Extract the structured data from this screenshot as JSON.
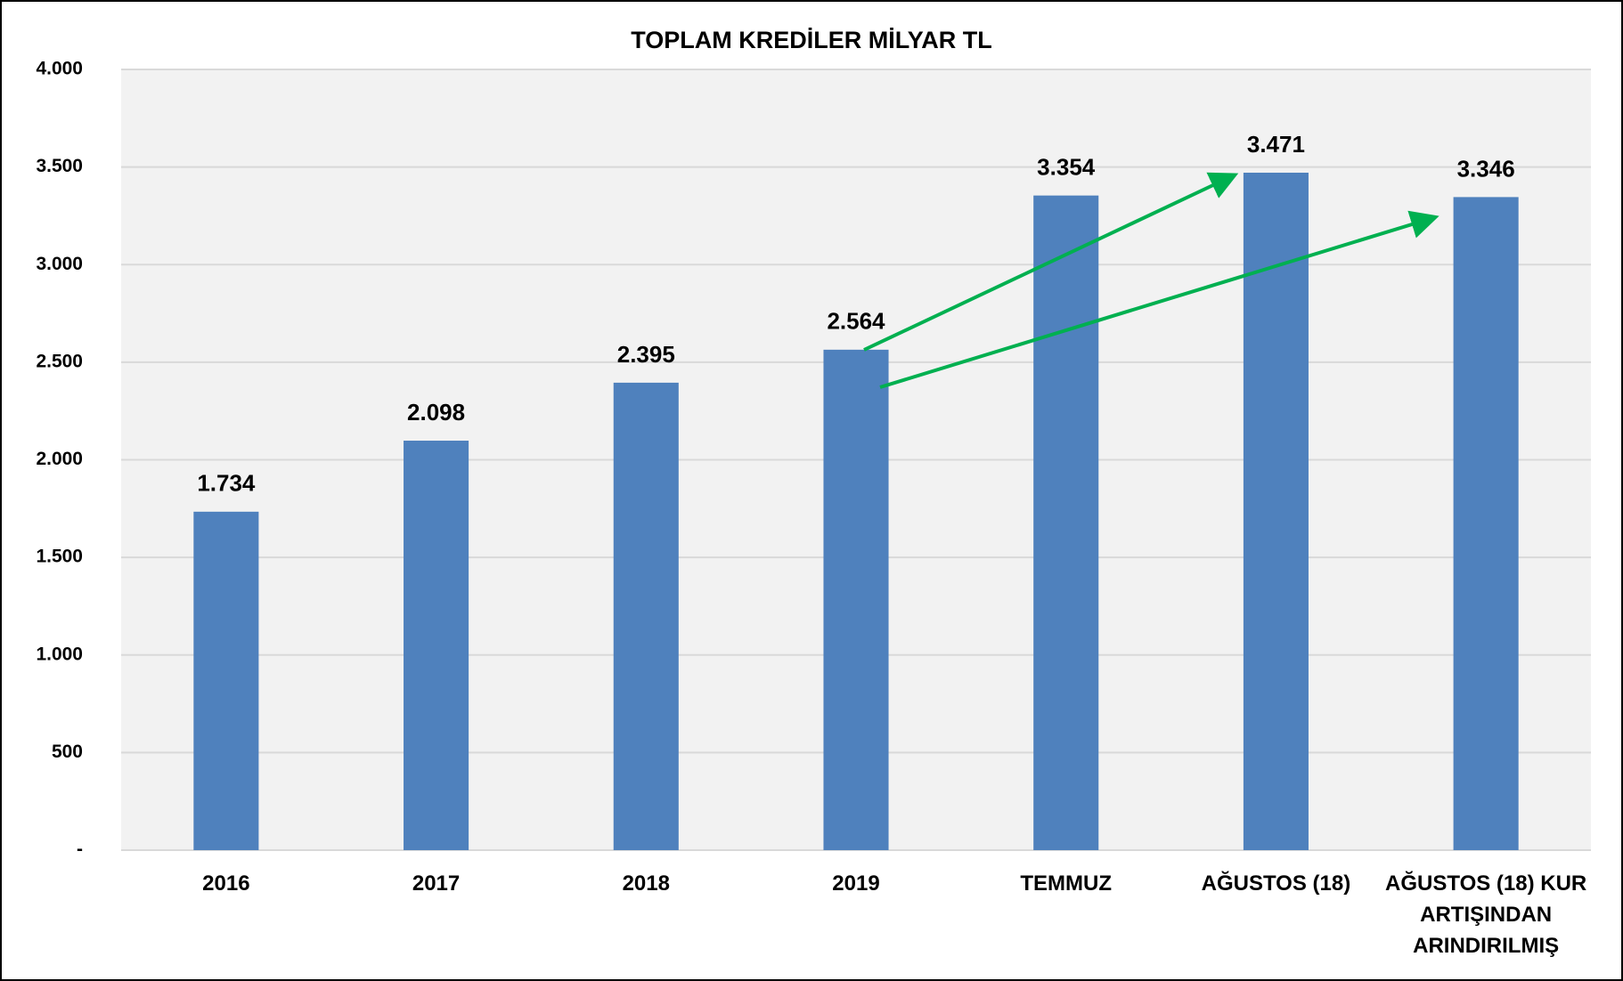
{
  "chart_data": {
    "type": "bar",
    "title": "TOPLAM KREDİLER MİLYAR TL",
    "categories": [
      "2016",
      "2017",
      "2018",
      "2019",
      "TEMMUZ",
      "AĞUSTOS (18)",
      "AĞUSTOS (18) KUR ARTIŞINDAN ARINDIRILMIŞ"
    ],
    "values": [
      1734,
      2098,
      2395,
      2564,
      3354,
      3471,
      3346
    ],
    "value_labels": [
      "1.734",
      "2.098",
      "2.395",
      "2.564",
      "3.354",
      "3.471",
      "3.346"
    ],
    "color": "#4f81bd",
    "ylim": [
      0,
      4000
    ],
    "yticks": [
      {
        "value": 0,
        "label": "-"
      },
      500,
      {
        "value": 1000,
        "label": "1.000"
      },
      {
        "value": 1500,
        "label": "1.500"
      },
      {
        "value": 2000,
        "label": "2.000"
      },
      {
        "value": 2500,
        "label": "2.500"
      },
      {
        "value": 3000,
        "label": "3.000"
      },
      {
        "value": 3500,
        "label": "3.500"
      },
      {
        "value": 4000,
        "label": "4.000"
      }
    ],
    "grid": true
  }
}
